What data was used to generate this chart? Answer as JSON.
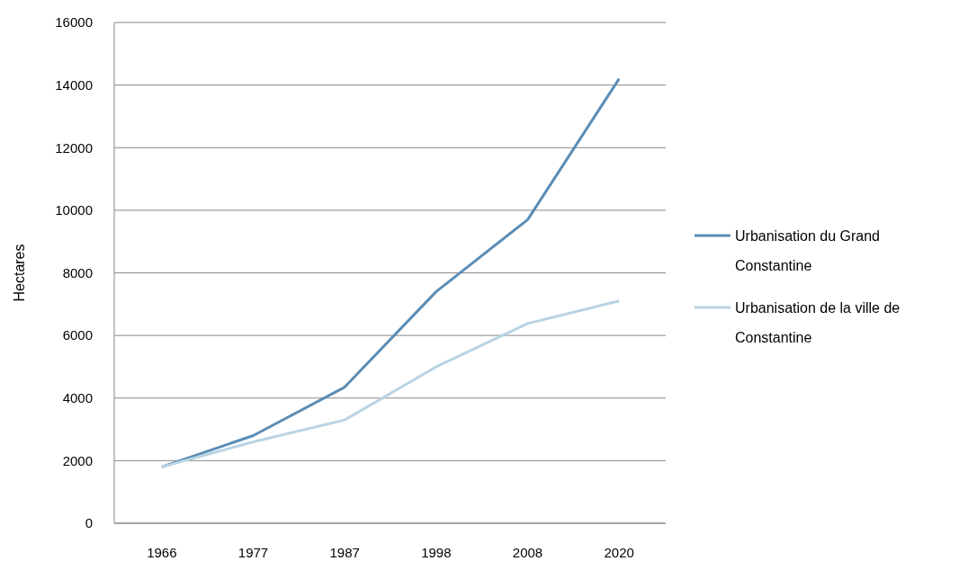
{
  "chart_data": {
    "type": "line",
    "ylabel": "Hectares",
    "categories": [
      "1966",
      "1977",
      "1987",
      "1998",
      "2008",
      "2020"
    ],
    "series": [
      {
        "name": "Urbanisation du Grand Constantine",
        "color": "#5b8db5",
        "values": [
          1800,
          2800,
          4350,
          7400,
          9700,
          14200
        ]
      },
      {
        "name": "Urbanisation de la ville de Constantine",
        "color": "#b9d3e3",
        "values": [
          1800,
          2600,
          3300,
          5000,
          6380,
          7100
        ]
      }
    ],
    "ylim": [
      0,
      16000
    ],
    "yticks": [
      0,
      2000,
      4000,
      6000,
      8000,
      10000,
      12000,
      14000,
      16000
    ],
    "grid": "y",
    "legend": "right",
    "marker": "none",
    "line_style": "solid"
  }
}
